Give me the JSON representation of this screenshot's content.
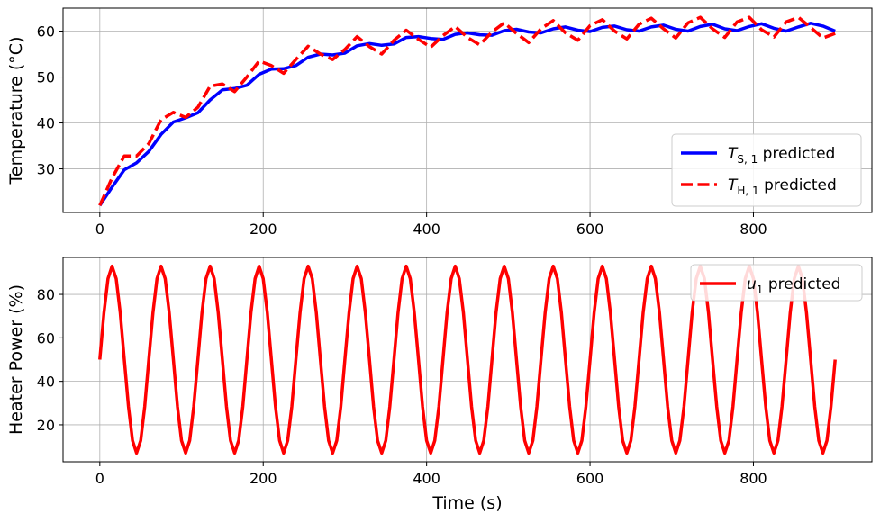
{
  "chart_data": [
    {
      "type": "line",
      "title": "",
      "xlabel": "",
      "ylabel": "Temperature (°C)",
      "xlim": [
        -45,
        945
      ],
      "ylim": [
        20.5,
        65
      ],
      "xticks": [
        0,
        200,
        400,
        600,
        800
      ],
      "yticks": [
        30,
        40,
        50,
        60
      ],
      "grid": true,
      "legend_position": "lower-right",
      "series": [
        {
          "name": "T_{S,1} predicted",
          "legend_main": "T",
          "legend_sub": "S, 1",
          "legend_suffix": " predicted",
          "color": "#0000ff",
          "style": "solid",
          "x": [
            0,
            15,
            30,
            45,
            60,
            75,
            90,
            105,
            120,
            135,
            150,
            165,
            180,
            195,
            210,
            225,
            240,
            255,
            270,
            285,
            300,
            315,
            330,
            345,
            360,
            375,
            390,
            405,
            420,
            435,
            450,
            465,
            480,
            495,
            510,
            525,
            540,
            555,
            570,
            585,
            600,
            615,
            630,
            645,
            660,
            675,
            690,
            705,
            720,
            735,
            750,
            765,
            780,
            795,
            810,
            825,
            840,
            855,
            870,
            885,
            900
          ],
          "y": [
            22,
            26,
            29.8,
            31.3,
            33.8,
            37.5,
            40.2,
            41.1,
            42.2,
            45,
            47.2,
            47.5,
            48.2,
            50.6,
            51.7,
            51.8,
            52.5,
            54.3,
            55,
            54.8,
            55.2,
            56.8,
            57.3,
            56.9,
            57.2,
            58.6,
            58.8,
            58.4,
            58.2,
            59.3,
            59.6,
            59.2,
            59.1,
            60.1,
            60.4,
            59.8,
            59.6,
            60.5,
            60.9,
            60.2,
            59.9,
            60.8,
            61.1,
            60.3,
            60,
            60.9,
            61.3,
            60.4,
            60,
            61,
            61.5,
            60.5,
            60.1,
            61,
            61.6,
            60.6,
            60,
            60.9,
            61.7,
            61.1,
            60
          ]
        },
        {
          "name": "T_{H,1} predicted",
          "legend_main": "T",
          "legend_sub": "H, 1",
          "legend_suffix": " predicted",
          "color": "#ff0000",
          "style": "dashed",
          "x": [
            0,
            15,
            30,
            45,
            60,
            75,
            90,
            105,
            120,
            135,
            150,
            165,
            180,
            195,
            210,
            225,
            240,
            255,
            270,
            285,
            300,
            315,
            330,
            345,
            360,
            375,
            390,
            405,
            420,
            435,
            450,
            465,
            480,
            495,
            510,
            525,
            540,
            555,
            570,
            585,
            600,
            615,
            630,
            645,
            660,
            675,
            690,
            705,
            720,
            735,
            750,
            765,
            780,
            795,
            810,
            825,
            840,
            855,
            870,
            885,
            900
          ],
          "y": [
            22,
            28,
            32.8,
            32.8,
            35.5,
            40.7,
            42.3,
            41.2,
            43.4,
            48,
            48.5,
            46.8,
            50,
            53.5,
            52.5,
            50.8,
            53.8,
            56.7,
            55,
            53.8,
            56,
            58.8,
            56.6,
            55,
            58,
            60.2,
            58.2,
            56.5,
            59,
            61,
            58.6,
            57,
            59.8,
            61.8,
            59.5,
            57.5,
            60.5,
            62.3,
            59.6,
            58,
            61.2,
            62.5,
            60,
            58.3,
            61.5,
            62.8,
            60.5,
            58.5,
            61.8,
            63,
            60.5,
            58.6,
            62,
            63,
            60.3,
            58.7,
            62,
            63,
            60.8,
            58.5,
            59.5
          ]
        }
      ]
    },
    {
      "type": "line",
      "title": "",
      "xlabel": "Time (s)",
      "ylabel": "Heater Power (%)",
      "xlim": [
        -45,
        945
      ],
      "ylim": [
        3,
        97
      ],
      "xticks": [
        0,
        200,
        400,
        600,
        800
      ],
      "yticks": [
        20,
        40,
        60,
        80
      ],
      "grid": true,
      "legend_position": "upper-right",
      "series": [
        {
          "name": "u_{1} predicted",
          "legend_main": "u",
          "legend_sub": "1",
          "legend_suffix": " predicted",
          "color": "#ff0000",
          "style": "solid",
          "period_s": 60,
          "amplitude": 43,
          "offset": 50,
          "clip": [
            7,
            93
          ],
          "x_range": [
            0,
            900
          ],
          "x_step": 5
        }
      ]
    }
  ]
}
